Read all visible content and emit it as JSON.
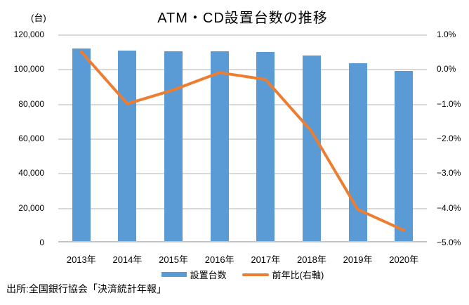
{
  "title": "ATM・CD設置台数の推移",
  "source": "出所:全国銀行協会「決済統計年報」",
  "colors": {
    "bar": "#5B9BD5",
    "line": "#ED7D31",
    "gridline": "#D9D9D9",
    "text": "#000000",
    "background": "#FFFFFF"
  },
  "chart_data": {
    "type": "bar+line combo, dual axis",
    "title": "ATM・CD設置台数の推移",
    "categories": [
      "2013年",
      "2014年",
      "2015年",
      "2016年",
      "2017年",
      "2018年",
      "2019年",
      "2020年"
    ],
    "series": [
      {
        "name": "設置台数",
        "type": "bar",
        "axis": "left",
        "color": "#5B9BD5",
        "values": [
          111000,
          110000,
          109400,
          109300,
          108900,
          107000,
          102700,
          98000
        ]
      },
      {
        "name": "前年比(右軸)",
        "type": "line",
        "axis": "right",
        "color": "#ED7D31",
        "values": [
          0.5,
          -1.0,
          -0.6,
          -0.1,
          -0.3,
          -1.8,
          -4.05,
          -4.65
        ]
      }
    ],
    "left_axis": {
      "unit": "(台)",
      "min": 0,
      "max": 120000,
      "step": 20000,
      "tick_labels": [
        "120,000",
        "100,000",
        "80,000",
        "60,000",
        "40,000",
        "20,000",
        "0"
      ]
    },
    "right_axis": {
      "unit": "%",
      "min": -5.0,
      "max": 1.0,
      "step": 1.0,
      "tick_labels": [
        "1.0%",
        "0.0%",
        "−1.0%",
        "−2.0%",
        "−3.0%",
        "−4.0%",
        "−5.0%"
      ]
    },
    "gridlines": "horizontal only, light gray",
    "legend_position": "bottom center"
  }
}
